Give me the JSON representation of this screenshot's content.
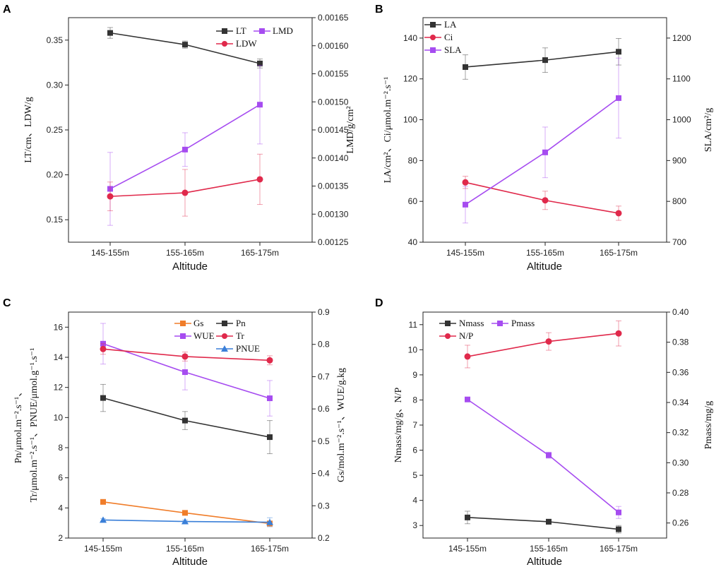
{
  "chart_data": [
    {
      "type": "line",
      "panel_label": "A",
      "categories": [
        "145-155m",
        "155-165m",
        "165-175m"
      ],
      "xlabel": "Altitude",
      "ylabel_left": "LT/cm、LDW/g",
      "ylabel_right": "LMD/g/cm²",
      "ylim_left": [
        0.125,
        0.375
      ],
      "ylim_right": [
        0.00125,
        0.00165
      ],
      "yticks_left": [
        "0.15",
        "0.20",
        "0.25",
        "0.30",
        "0.35"
      ],
      "yticks_right": [
        "0.00125",
        "0.00130",
        "0.00135",
        "0.00140",
        "0.00145",
        "0.00150",
        "0.00155",
        "0.00160",
        "0.00165"
      ],
      "series": [
        {
          "name": "LT",
          "axis": "left",
          "color": "#333333",
          "marker": "square",
          "values": [
            0.358,
            0.345,
            0.324
          ],
          "errors": [
            0.006,
            0.004,
            0.005
          ]
        },
        {
          "name": "LMD",
          "axis": "right",
          "color": "#a64cf0",
          "marker": "square",
          "values": [
            0.001345,
            0.001415,
            0.001495
          ],
          "errors": [
            6.5e-05,
            3e-05,
            7e-05
          ]
        },
        {
          "name": "LDW",
          "axis": "left",
          "color": "#e0294b",
          "marker": "circle",
          "values": [
            0.176,
            0.18,
            0.195
          ],
          "errors": [
            0.016,
            0.026,
            0.028
          ]
        }
      ]
    },
    {
      "type": "line",
      "panel_label": "B",
      "categories": [
        "145-155m",
        "155-165m",
        "165-175m"
      ],
      "xlabel": "Altitude",
      "ylabel_left": "LA/cm²、Ci/μmol.m⁻².s⁻¹",
      "ylabel_right": "SLA/cm²/g",
      "ylim_left": [
        40,
        150
      ],
      "ylim_right": [
        700,
        1250
      ],
      "yticks_left": [
        "40",
        "60",
        "80",
        "100",
        "120",
        "140"
      ],
      "yticks_right": [
        "700",
        "800",
        "900",
        "1000",
        "1100",
        "1200"
      ],
      "series": [
        {
          "name": "LA",
          "axis": "left",
          "color": "#333333",
          "marker": "square",
          "values": [
            125.8,
            129.2,
            133.3
          ],
          "errors": [
            6,
            6,
            6.5
          ]
        },
        {
          "name": "Ci",
          "axis": "left",
          "color": "#e0294b",
          "marker": "circle",
          "values": [
            69.3,
            60.5,
            54.2
          ],
          "errors": [
            3,
            4.5,
            3.5
          ]
        },
        {
          "name": "SLA",
          "axis": "right",
          "color": "#a64cf0",
          "marker": "square",
          "values": [
            792,
            920,
            1053
          ],
          "errors": [
            45,
            62,
            98
          ]
        }
      ]
    },
    {
      "type": "line",
      "panel_label": "C",
      "categories": [
        "145-155m",
        "155-165m",
        "165-175m"
      ],
      "xlabel": "Altitude",
      "ylabel_left": "Tr/μmol.m⁻².s⁻¹、PNUE/μmol.g⁻¹.s⁻¹",
      "ylabel_left2": "Pn/μmol.m⁻².s⁻¹、",
      "ylabel_right": "Gs/mol.m⁻².s⁻¹、WUE/g.kg",
      "ylim_left": [
        2,
        17
      ],
      "ylim_right": [
        0.2,
        0.9
      ],
      "yticks_left": [
        "2",
        "4",
        "6",
        "8",
        "10",
        "12",
        "14",
        "16"
      ],
      "yticks_right": [
        "0.2",
        "0.3",
        "0.4",
        "0.5",
        "0.6",
        "0.7",
        "0.8",
        "0.9"
      ],
      "series": [
        {
          "name": "Gs",
          "axis": "right",
          "color": "#f07d2a",
          "marker": "square",
          "values": [
            0.312,
            0.278,
            0.245
          ],
          "errors": [
            0.004,
            0.004,
            0.008
          ]
        },
        {
          "name": "Pn",
          "axis": "left",
          "color": "#333333",
          "marker": "square",
          "values": [
            11.3,
            9.8,
            8.7
          ],
          "errors": [
            0.9,
            0.6,
            1.1
          ]
        },
        {
          "name": "WUE",
          "axis": "right",
          "color": "#a64cf0",
          "marker": "square",
          "values": [
            0.802,
            0.714,
            0.633
          ],
          "errors": [
            0.063,
            0.055,
            0.055
          ]
        },
        {
          "name": "Tr",
          "axis": "left",
          "color": "#e0294b",
          "marker": "circle",
          "values": [
            14.55,
            14.05,
            13.8
          ],
          "errors": [
            0.35,
            0.3,
            0.3
          ]
        },
        {
          "name": "PNUE",
          "axis": "left",
          "color": "#3a7fd8",
          "marker": "triangle",
          "values": [
            3.2,
            3.1,
            3.05
          ],
          "errors": [
            0.1,
            0.1,
            0.3
          ]
        }
      ]
    },
    {
      "type": "line",
      "panel_label": "D",
      "categories": [
        "145-155m",
        "155-165m",
        "165-175m"
      ],
      "xlabel": "Altitude",
      "ylabel_left": "Nmass/mg/g、N/P",
      "ylabel_right": "Pmass/mg/g",
      "ylim_left": [
        2.5,
        11.5
      ],
      "ylim_right": [
        0.25,
        0.4
      ],
      "yticks_left": [
        "3",
        "4",
        "5",
        "6",
        "7",
        "8",
        "9",
        "10",
        "11"
      ],
      "yticks_right": [
        "0.26",
        "0.28",
        "0.30",
        "0.32",
        "0.34",
        "0.36",
        "0.38",
        "0.40"
      ],
      "series": [
        {
          "name": "Nmass",
          "axis": "left",
          "color": "#333333",
          "marker": "square",
          "values": [
            3.32,
            3.15,
            2.85
          ],
          "errors": [
            0.25,
            0.1,
            0.15
          ]
        },
        {
          "name": "Pmass",
          "axis": "right",
          "color": "#a64cf0",
          "marker": "square",
          "values": [
            0.342,
            0.305,
            0.267
          ],
          "errors": [
            0.001,
            0.002,
            0.004
          ]
        },
        {
          "name": "N/P",
          "axis": "left",
          "color": "#e0294b",
          "marker": "circle",
          "values": [
            9.73,
            10.33,
            10.65
          ],
          "errors": [
            0.45,
            0.35,
            0.5
          ]
        }
      ]
    }
  ]
}
